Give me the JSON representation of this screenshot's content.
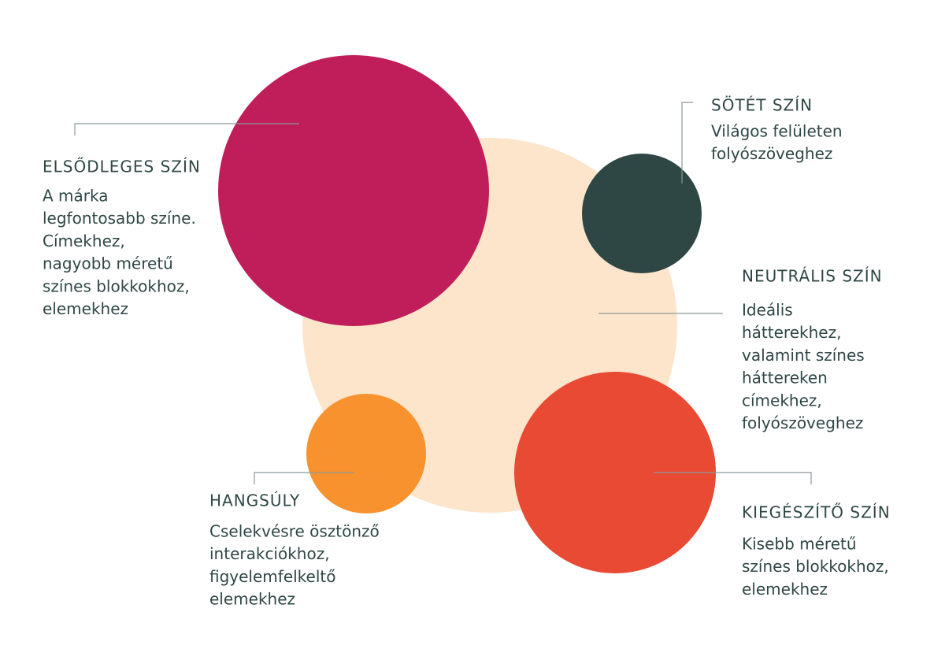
{
  "items": [
    {
      "title": "ELSŐDLEGES SZÍN",
      "lines": [
        "A márka",
        "legfontosabb színe.",
        "Címekhez,",
        "nagyobb méretű",
        "színes blokkokhoz,",
        "elemekhez"
      ]
    },
    {
      "title": "SÖTÉT SZÍN",
      "lines": [
        "Világos felületen",
        "folyószöveghez"
      ]
    },
    {
      "title": "NEUTRÁLIS SZÍN",
      "lines": [
        "Ideális",
        "hátterekhez,",
        "valamint színes",
        "háttereken",
        "címekhez,",
        "folyószöveghez"
      ]
    },
    {
      "title": "HANGSÚLY",
      "lines": [
        "Cselekvésre ösztönző",
        "interakciókhoz,",
        "figyelemfelkeltő",
        "elemekhez"
      ]
    },
    {
      "title": "KIEGÉSZÍTŐ SZÍN",
      "lines": [
        "Kisebb méretű",
        "színes blokkokhoz,",
        "elemekhez"
      ]
    }
  ]
}
